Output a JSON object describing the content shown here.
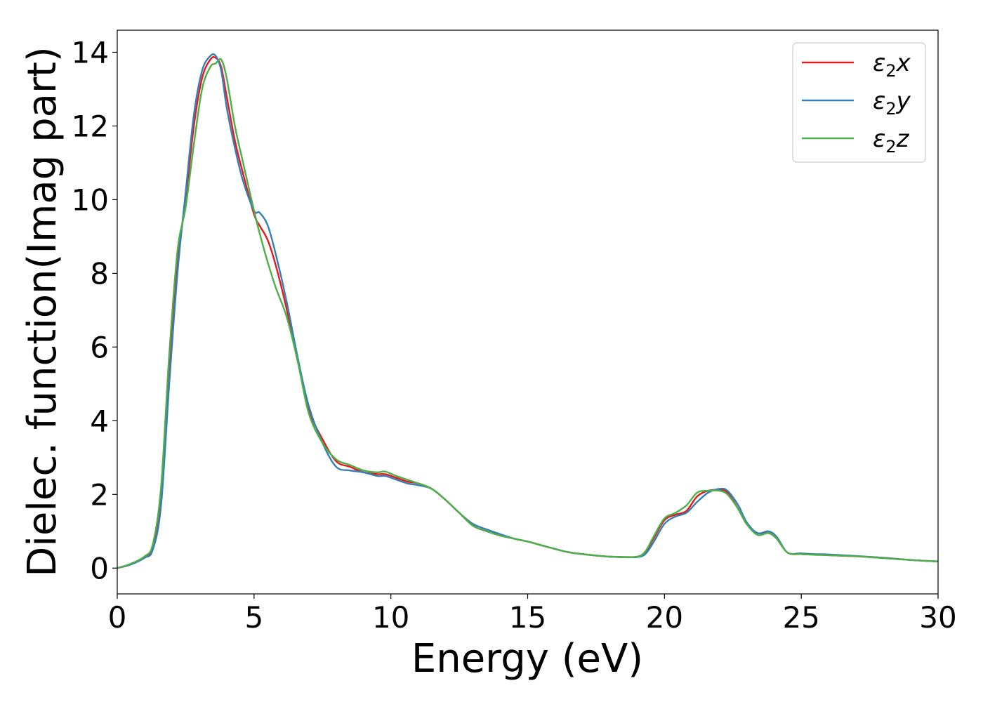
{
  "chart_data": {
    "type": "line",
    "xlabel": "Energy (eV)",
    "ylabel": "Dielec. function(Imag part)",
    "xlim": [
      0,
      30
    ],
    "ylim": [
      -0.7,
      14.6
    ],
    "xticks": [
      0,
      5,
      10,
      15,
      20,
      25,
      30
    ],
    "yticks": [
      0,
      2,
      4,
      6,
      8,
      10,
      12,
      14
    ],
    "grid": false,
    "legend_position": "top-right",
    "series": [
      {
        "name": "ε₂x",
        "legend_main": "ε",
        "legend_sub": "2",
        "legend_suffix": "x",
        "color": "#e41a1c",
        "x": [
          0,
          0.5,
          1.0,
          1.3,
          1.6,
          1.9,
          2.2,
          2.5,
          2.8,
          3.1,
          3.4,
          3.6,
          3.8,
          4.0,
          4.3,
          4.6,
          5.0,
          5.2,
          5.5,
          5.8,
          6.2,
          6.6,
          7.0,
          7.5,
          8.0,
          8.5,
          9.0,
          9.5,
          9.8,
          10.2,
          10.6,
          11.0,
          11.5,
          12.0,
          12.5,
          13.0,
          13.5,
          14.0,
          14.5,
          15.0,
          15.5,
          16.0,
          16.5,
          17.0,
          17.5,
          18.0,
          18.5,
          19.0,
          19.3,
          19.6,
          20.0,
          20.4,
          20.8,
          21.2,
          21.6,
          22.0,
          22.3,
          22.7,
          23.0,
          23.4,
          23.8,
          24.1,
          24.5,
          25.0,
          25.5,
          26.0,
          27.0,
          28.0,
          29.0,
          30.0
        ],
        "y": [
          0.0,
          0.1,
          0.3,
          0.6,
          2.0,
          5.5,
          8.3,
          10.0,
          12.0,
          13.3,
          13.8,
          13.85,
          13.6,
          12.8,
          11.6,
          10.7,
          9.6,
          9.3,
          8.9,
          8.2,
          7.0,
          5.6,
          4.3,
          3.5,
          2.9,
          2.75,
          2.6,
          2.55,
          2.55,
          2.45,
          2.35,
          2.3,
          2.15,
          1.85,
          1.5,
          1.15,
          1.0,
          0.9,
          0.8,
          0.72,
          0.62,
          0.52,
          0.43,
          0.38,
          0.34,
          0.31,
          0.3,
          0.31,
          0.42,
          0.8,
          1.3,
          1.45,
          1.55,
          1.95,
          2.1,
          2.12,
          2.05,
          1.6,
          1.2,
          0.95,
          0.95,
          0.8,
          0.42,
          0.38,
          0.37,
          0.35,
          0.32,
          0.28,
          0.22,
          0.18
        ]
      },
      {
        "name": "ε₂y",
        "legend_main": "ε",
        "legend_sub": "2",
        "legend_suffix": "y",
        "color": "#377eb8",
        "x": [
          0,
          0.5,
          1.0,
          1.3,
          1.6,
          1.9,
          2.2,
          2.5,
          2.8,
          3.1,
          3.4,
          3.6,
          3.8,
          4.0,
          4.3,
          4.6,
          5.0,
          5.2,
          5.5,
          5.8,
          6.2,
          6.6,
          7.0,
          7.5,
          8.0,
          8.5,
          9.0,
          9.5,
          9.8,
          10.2,
          10.6,
          11.0,
          11.5,
          12.0,
          12.5,
          13.0,
          13.5,
          14.0,
          14.5,
          15.0,
          15.5,
          16.0,
          16.5,
          17.0,
          17.5,
          18.0,
          18.5,
          19.0,
          19.3,
          19.6,
          20.0,
          20.4,
          20.8,
          21.2,
          21.6,
          22.0,
          22.3,
          22.7,
          23.0,
          23.4,
          23.8,
          24.1,
          24.5,
          25.0,
          25.5,
          26.0,
          27.0,
          28.0,
          29.0,
          30.0
        ],
        "y": [
          0.0,
          0.1,
          0.28,
          0.5,
          1.7,
          5.0,
          8.0,
          10.2,
          12.3,
          13.5,
          13.9,
          13.9,
          13.5,
          12.5,
          11.4,
          10.5,
          9.7,
          9.65,
          9.3,
          8.5,
          7.2,
          5.7,
          4.4,
          3.4,
          2.75,
          2.65,
          2.6,
          2.5,
          2.5,
          2.4,
          2.3,
          2.25,
          2.15,
          1.85,
          1.5,
          1.2,
          1.05,
          0.92,
          0.8,
          0.72,
          0.62,
          0.52,
          0.43,
          0.38,
          0.34,
          0.31,
          0.3,
          0.3,
          0.38,
          0.7,
          1.2,
          1.4,
          1.5,
          1.8,
          2.05,
          2.15,
          2.1,
          1.7,
          1.25,
          0.95,
          1.0,
          0.85,
          0.42,
          0.4,
          0.38,
          0.37,
          0.33,
          0.28,
          0.22,
          0.18
        ]
      },
      {
        "name": "ε₂z",
        "legend_main": "ε",
        "legend_sub": "2",
        "legend_suffix": "z",
        "color": "#4daf4a",
        "x": [
          0,
          0.5,
          1.0,
          1.3,
          1.6,
          1.9,
          2.2,
          2.5,
          2.8,
          3.1,
          3.4,
          3.6,
          3.8,
          4.0,
          4.3,
          4.6,
          5.0,
          5.2,
          5.5,
          5.8,
          6.2,
          6.6,
          7.0,
          7.5,
          8.0,
          8.5,
          9.0,
          9.5,
          9.8,
          10.2,
          10.6,
          11.0,
          11.5,
          12.0,
          12.5,
          13.0,
          13.5,
          14.0,
          14.5,
          15.0,
          15.5,
          16.0,
          16.5,
          17.0,
          17.5,
          18.0,
          18.5,
          19.0,
          19.3,
          19.6,
          20.0,
          20.4,
          20.8,
          21.2,
          21.6,
          22.0,
          22.3,
          22.7,
          23.0,
          23.4,
          23.8,
          24.1,
          24.5,
          25.0,
          25.5,
          26.0,
          27.0,
          28.0,
          29.0,
          30.0
        ],
        "y": [
          0.0,
          0.12,
          0.32,
          0.65,
          2.2,
          5.8,
          8.6,
          9.8,
          11.5,
          13.0,
          13.6,
          13.7,
          13.8,
          13.3,
          12.0,
          11.0,
          9.7,
          9.1,
          8.3,
          7.6,
          6.8,
          5.6,
          4.2,
          3.4,
          2.95,
          2.8,
          2.65,
          2.6,
          2.62,
          2.5,
          2.4,
          2.3,
          2.15,
          1.85,
          1.5,
          1.15,
          1.0,
          0.88,
          0.8,
          0.72,
          0.62,
          0.52,
          0.43,
          0.38,
          0.34,
          0.31,
          0.3,
          0.31,
          0.45,
          0.85,
          1.35,
          1.5,
          1.7,
          2.05,
          2.1,
          2.1,
          2.0,
          1.6,
          1.2,
          0.9,
          0.95,
          0.8,
          0.42,
          0.38,
          0.36,
          0.35,
          0.32,
          0.27,
          0.22,
          0.18
        ]
      }
    ]
  }
}
